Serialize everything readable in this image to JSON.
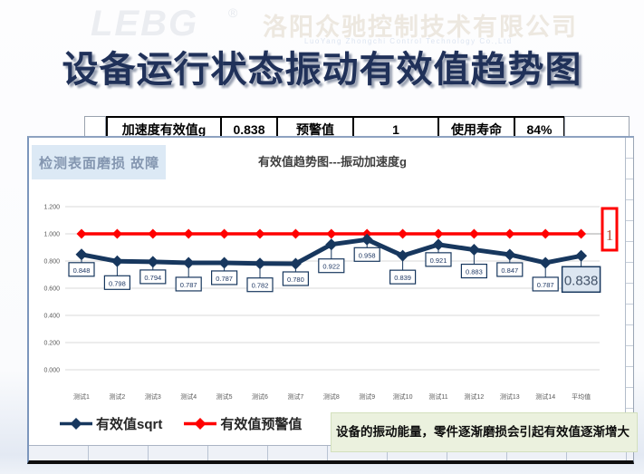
{
  "header": {
    "logo_text": "LEBG",
    "reg_mark": "®",
    "company_cn": "洛阳众驰控制技术有限公司",
    "company_en": "LuoYang Zhongchi Control Technology Co.,Ltd"
  },
  "title": "设备运行状态振动有效值趋势图",
  "summary_table": {
    "accel_label": "加速度有效值g",
    "accel_value": "0.838",
    "warning_label": "预警值",
    "warning_value": "1",
    "life_label": "使用寿命",
    "life_value": "84%"
  },
  "chart_panel": {
    "corner_label": "检测表面磨损 故障",
    "note": "设备的振动能量，零件逐渐磨损会引起有效值逐渐增大"
  },
  "chart_data": {
    "type": "line",
    "title": "有效值趋势图---振动加速度g",
    "categories": [
      "测试1",
      "测试2",
      "测试3",
      "测试4",
      "测试5",
      "测试6",
      "测试7",
      "测试8",
      "测试9",
      "测试10",
      "测试11",
      "测试12",
      "测试13",
      "测试14",
      "平均值"
    ],
    "series": [
      {
        "name": "有效值sqrt",
        "color": "#17375E",
        "marker": "diamond",
        "data_labels": true,
        "values": [
          0.848,
          0.798,
          0.794,
          0.787,
          0.787,
          0.782,
          0.78,
          0.922,
          0.958,
          0.839,
          0.921,
          0.883,
          0.847,
          0.787,
          0.838
        ]
      },
      {
        "name": "有效值预警值",
        "color": "#FF0000",
        "marker": "diamond",
        "data_labels": false,
        "values": [
          1,
          1,
          1,
          1,
          1,
          1,
          1,
          1,
          1,
          1,
          1,
          1,
          1,
          1,
          1
        ]
      }
    ],
    "ylim": [
      0,
      1.2
    ],
    "ytick_step": 0.2,
    "ytick_labels": [
      "0.000",
      "0.200",
      "0.400",
      "0.600",
      "0.800",
      "1.000",
      "1.200"
    ],
    "grid": true,
    "legend_position": "bottom-left",
    "threshold_label": "1",
    "highlighted_last_label": "0.838"
  },
  "colors": {
    "navy": "#17375E",
    "red": "#FF0000",
    "grid_line": "#D9D9D9",
    "axis_text": "#595959",
    "corner_bg": "#DCE9F5",
    "note_bg": "#EBF1DE",
    "highlight_label_bg": "#DCE6F1",
    "title_text": "#203159"
  }
}
